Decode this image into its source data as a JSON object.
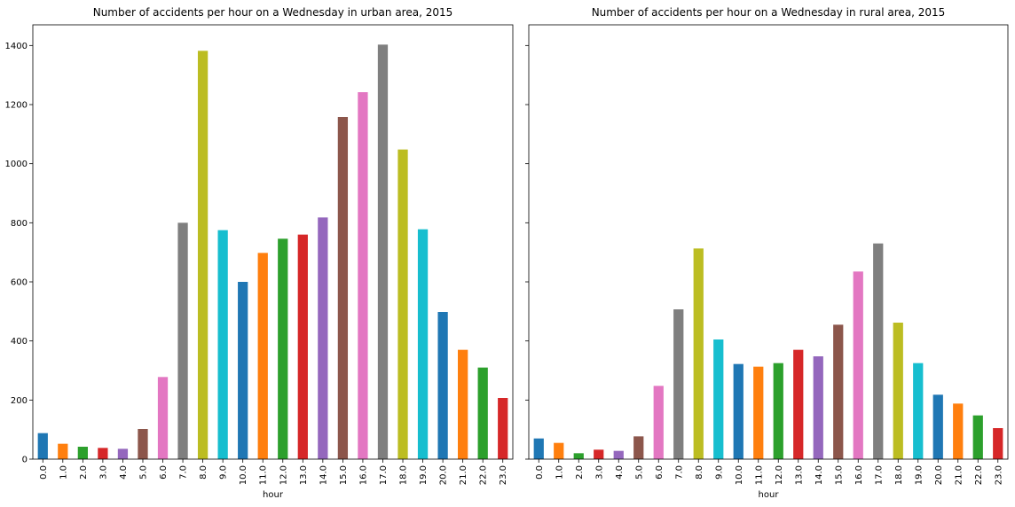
{
  "chart_data": [
    {
      "type": "bar",
      "title": "Number of accidents per hour on a Wednesday in urban area, 2015",
      "xlabel": "hour",
      "ylabel": "",
      "categories": [
        "0.0",
        "1.0",
        "2.0",
        "3.0",
        "4.0",
        "5.0",
        "6.0",
        "7.0",
        "8.0",
        "9.0",
        "10.0",
        "11.0",
        "12.0",
        "13.0",
        "14.0",
        "15.0",
        "16.0",
        "17.0",
        "18.0",
        "19.0",
        "20.0",
        "21.0",
        "22.0",
        "23.0"
      ],
      "values": [
        88,
        52,
        42,
        38,
        35,
        102,
        278,
        800,
        1382,
        775,
        600,
        698,
        746,
        760,
        818,
        1158,
        1242,
        1403,
        1048,
        778,
        498,
        370,
        310,
        207
      ],
      "ylim": [
        0,
        1470
      ],
      "yticks": [
        0,
        200,
        400,
        600,
        800,
        1000,
        1200,
        1400
      ],
      "grid": false,
      "legend": "none"
    },
    {
      "type": "bar",
      "title": "Number of accidents per hour on a Wednesday in rural area, 2015",
      "xlabel": "hour",
      "ylabel": "",
      "categories": [
        "0.0",
        "1.0",
        "2.0",
        "3.0",
        "4.0",
        "5.0",
        "6.0",
        "7.0",
        "8.0",
        "9.0",
        "10.0",
        "11.0",
        "12.0",
        "13.0",
        "14.0",
        "15.0",
        "16.0",
        "17.0",
        "18.0",
        "19.0",
        "20.0",
        "21.0",
        "22.0",
        "23.0"
      ],
      "values": [
        70,
        55,
        20,
        32,
        28,
        77,
        248,
        507,
        713,
        405,
        322,
        313,
        325,
        370,
        348,
        455,
        635,
        730,
        462,
        325,
        218,
        188,
        148,
        105
      ],
      "ylim": [
        0,
        1470
      ],
      "yticks": [
        0,
        200,
        400,
        600,
        800,
        1000,
        1200,
        1400
      ],
      "shared_y": true,
      "grid": false,
      "legend": "none"
    }
  ],
  "colors": [
    "#1f77b4",
    "#ff7f0e",
    "#2ca02c",
    "#d62728",
    "#9467bd",
    "#8c564b",
    "#e377c2",
    "#7f7f7f",
    "#bcbd22",
    "#17becf"
  ]
}
